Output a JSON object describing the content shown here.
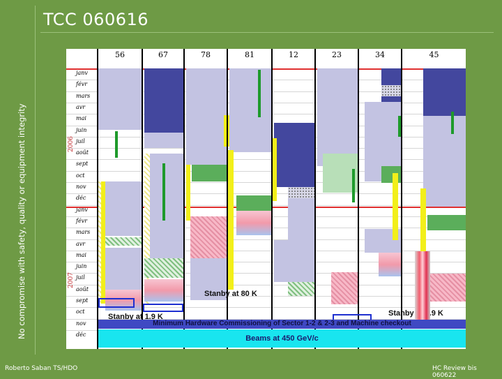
{
  "slide": {
    "title": "TCC 060616",
    "side_text": "No compromise with safety, quality or equipment integrity",
    "footer_left": "Roberto Saban TS/HDO",
    "footer_right": "HC Review bis 060622"
  },
  "schedule": {
    "sectors": [
      "56",
      "67",
      "78",
      "81",
      "12",
      "23",
      "34",
      "45"
    ],
    "months": [
      "janv",
      "févr",
      "mars",
      "avr",
      "mai",
      "juin",
      "juil",
      "août",
      "sept",
      "oct",
      "nov",
      "déc",
      "janv",
      "févr",
      "mars",
      "avr",
      "mai",
      "juin",
      "juil",
      "août",
      "sept",
      "oct",
      "nov",
      "déc"
    ],
    "years": [
      "2006",
      "2007"
    ],
    "labels": {
      "standby_80k": "Stanby at 80 K",
      "standby_19k_left": "Stanby at 1.9 K",
      "standby_19k_right": "Stanby at 1.9 K",
      "hardware_commissioning": "Minimum Hardware Commissioning of Sector 1-2 & 2-3 and Machine checkout",
      "beams": "Beams at 450 GeV/c"
    },
    "colors": {
      "background": "#6e9a45",
      "blue": "#43479e",
      "lavender": "#c3c3e2",
      "green": "#5bae5b",
      "yellow": "#f2ef1a",
      "cyan_band": "#19e5ef",
      "red_marker": "#e03030"
    }
  }
}
